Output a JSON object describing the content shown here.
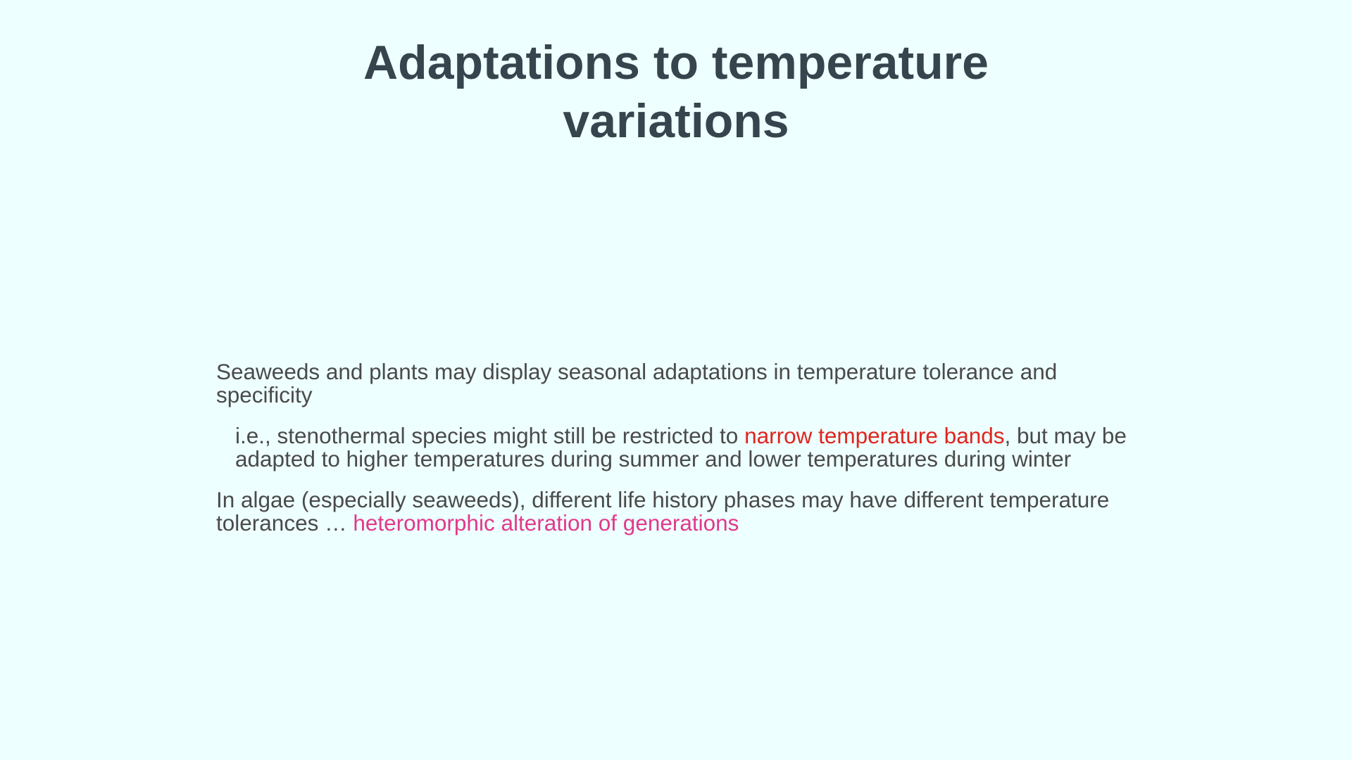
{
  "slide": {
    "title": "Adaptations to temperature variations",
    "paragraphs": [
      {
        "text": "Seaweeds and plants may display seasonal adaptations in temperature tolerance and specificity"
      },
      {
        "text_before": "i.e., stenothermal species might still be restricted to ",
        "highlight": "narrow temperature bands",
        "text_after": ", but may be adapted to higher temperatures during summer and lower temperatures during winter"
      },
      {
        "text_before": "In algae (especially seaweeds), different life history phases may have different temperature tolerances … ",
        "highlight": "heteromorphic alteration of generations"
      }
    ]
  },
  "colors": {
    "background": "#eeffff",
    "title": "#36454d",
    "body_text": "#4a4a4a",
    "highlight_red": "#e0241d",
    "highlight_pink": "#e2388a"
  }
}
